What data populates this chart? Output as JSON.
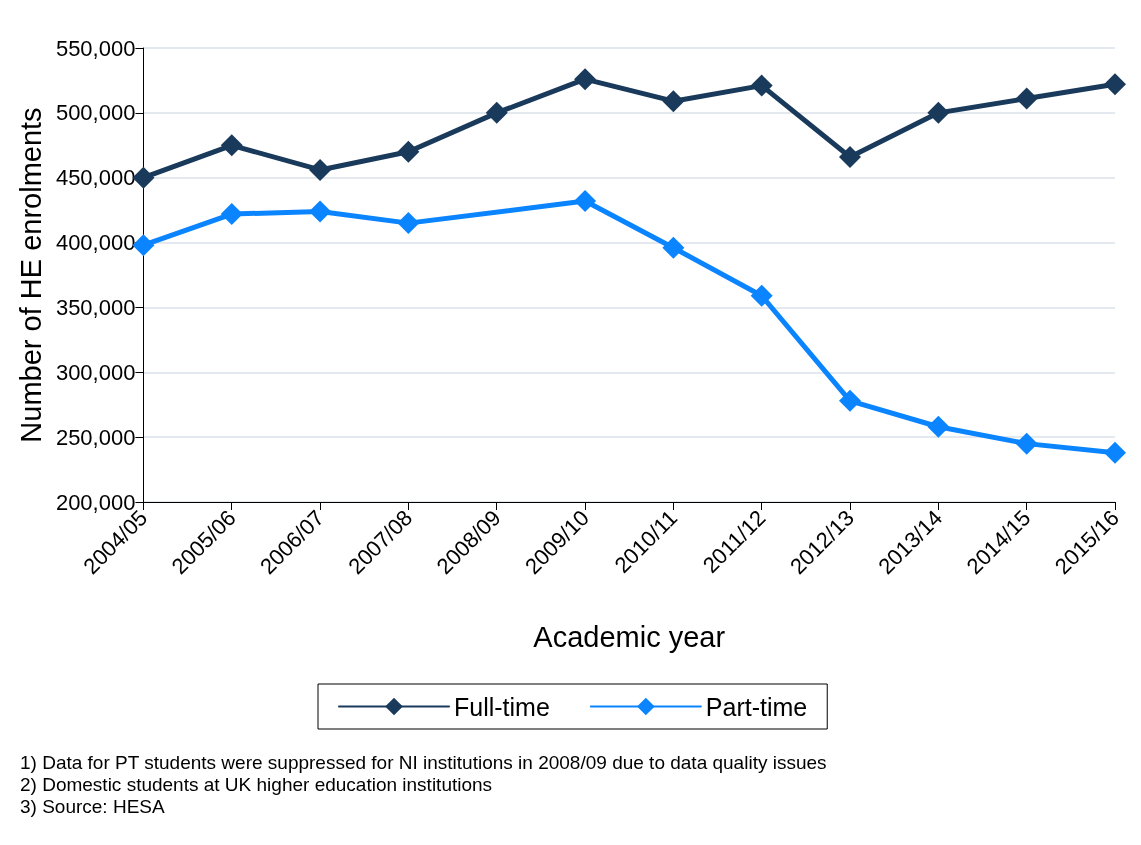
{
  "chart_data": {
    "type": "line",
    "xlabel": "Academic year",
    "ylabel": "Number of HE enrolments",
    "categories": [
      "2004/05",
      "2005/06",
      "2006/07",
      "2007/08",
      "2008/09",
      "2009/10",
      "2010/11",
      "2011/12",
      "2012/13",
      "2013/14",
      "2014/15",
      "2015/16"
    ],
    "series": [
      {
        "name": "Full-time",
        "color": "#1a3a5c",
        "values": [
          450000,
          475000,
          456000,
          470000,
          500000,
          526000,
          509000,
          521000,
          466000,
          500000,
          511000,
          522000
        ]
      },
      {
        "name": "Part-time",
        "color": "#0a84ff",
        "values": [
          398000,
          422000,
          424000,
          415000,
          null,
          432000,
          396000,
          359000,
          278000,
          258000,
          245000,
          238000
        ]
      }
    ],
    "ylim": [
      200000,
      550000
    ],
    "yticks": [
      {
        "value": 200000,
        "label": "200,000"
      },
      {
        "value": 250000,
        "label": "250,000"
      },
      {
        "value": 300000,
        "label": "300,000"
      },
      {
        "value": 350000,
        "label": "350,000"
      },
      {
        "value": 400000,
        "label": "400,000"
      },
      {
        "value": 450000,
        "label": "450,000"
      },
      {
        "value": 500000,
        "label": "500,000"
      },
      {
        "value": 550000,
        "label": "550,000"
      }
    ],
    "grid": "y",
    "legend": "bottom",
    "marker": "diamond",
    "line_style": "solid",
    "annotations": [
      "1) Data for PT students were suppressed for NI institutions in 2008/09 due to data quality issues",
      "2) Domestic students at UK higher education institutions",
      "3) Source: HESA"
    ]
  }
}
